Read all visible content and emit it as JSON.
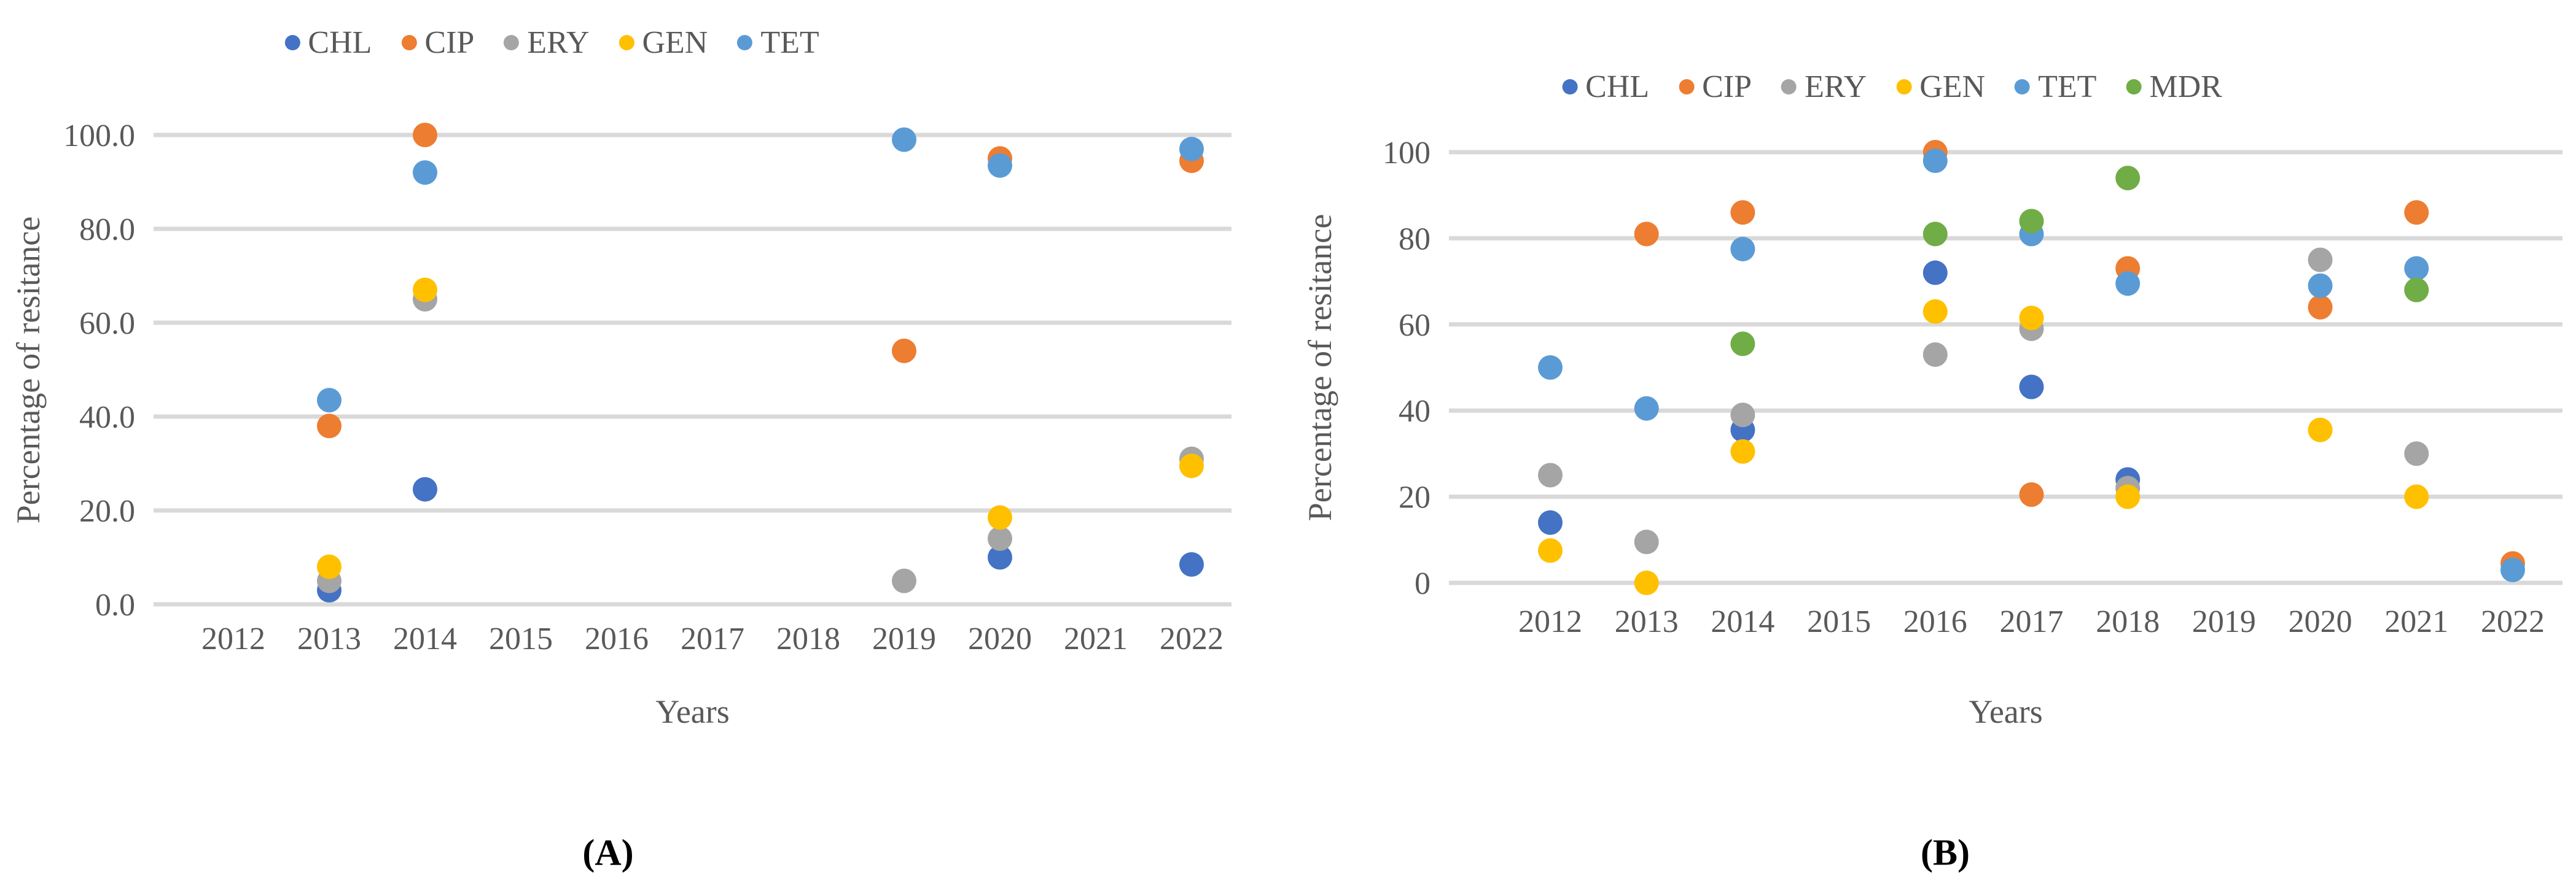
{
  "figure": {
    "background": "#FFFFFF",
    "text_color": "#595959",
    "gridline_color": "#D9D9D9"
  },
  "chart_data": [
    {
      "id": "A",
      "type": "scatter",
      "caption": "(A)",
      "title": "",
      "xlabel": "Years",
      "ylabel": "Percentage of resitance",
      "x_tick_labels": [
        "2012",
        "2013",
        "2014",
        "2015",
        "2016",
        "2017",
        "2018",
        "2019",
        "2020",
        "2021",
        "2022"
      ],
      "y_tick_labels": [
        "0.0",
        "20.0",
        "40.0",
        "60.0",
        "80.0",
        "100.0"
      ],
      "ylim": [
        0,
        100
      ],
      "grid": true,
      "legend_position": "top",
      "series": [
        {
          "name": "CHL",
          "color": "#4472C4",
          "points": [
            [
              2013,
              3
            ],
            [
              2014,
              24.5
            ],
            [
              2020,
              10
            ],
            [
              2022,
              8.5
            ]
          ]
        },
        {
          "name": "CIP",
          "color": "#ED7D31",
          "points": [
            [
              2013,
              38
            ],
            [
              2014,
              100
            ],
            [
              2019,
              54
            ],
            [
              2020,
              95
            ],
            [
              2022,
              94.5
            ]
          ]
        },
        {
          "name": "ERY",
          "color": "#A5A5A5",
          "points": [
            [
              2013,
              5
            ],
            [
              2014,
              65
            ],
            [
              2019,
              5
            ],
            [
              2020,
              14
            ],
            [
              2022,
              31
            ]
          ]
        },
        {
          "name": "GEN",
          "color": "#FFC000",
          "points": [
            [
              2013,
              8
            ],
            [
              2014,
              67
            ],
            [
              2020,
              18.5
            ],
            [
              2022,
              29.5
            ]
          ]
        },
        {
          "name": "TET",
          "color": "#5B9BD5",
          "points": [
            [
              2013,
              43.5
            ],
            [
              2014,
              92
            ],
            [
              2019,
              99
            ],
            [
              2020,
              93.5
            ],
            [
              2022,
              97
            ]
          ]
        }
      ]
    },
    {
      "id": "B",
      "type": "scatter",
      "caption": "(B)",
      "title": "",
      "xlabel": "Years",
      "ylabel": "Percentage of resitance",
      "x_tick_labels": [
        "2012",
        "2013",
        "2014",
        "2015",
        "2016",
        "2017",
        "2018",
        "2019",
        "2020",
        "2021",
        "2022"
      ],
      "y_tick_labels": [
        "0",
        "20",
        "40",
        "60",
        "80",
        "100"
      ],
      "ylim": [
        0,
        100
      ],
      "grid": true,
      "legend_position": "top",
      "series": [
        {
          "name": "CHL",
          "color": "#4472C4",
          "points": [
            [
              2012,
              14
            ],
            [
              2014,
              35.5
            ],
            [
              2016,
              72
            ],
            [
              2017,
              45.5
            ],
            [
              2018,
              24
            ]
          ]
        },
        {
          "name": "CIP",
          "color": "#ED7D31",
          "points": [
            [
              2013,
              81
            ],
            [
              2014,
              86
            ],
            [
              2016,
              100
            ],
            [
              2017,
              20.5
            ],
            [
              2018,
              73
            ],
            [
              2020,
              64
            ],
            [
              2021,
              86
            ],
            [
              2022,
              4.5
            ]
          ]
        },
        {
          "name": "ERY",
          "color": "#A5A5A5",
          "points": [
            [
              2012,
              25
            ],
            [
              2013,
              9.5
            ],
            [
              2014,
              39
            ],
            [
              2016,
              53
            ],
            [
              2017,
              59
            ],
            [
              2018,
              22
            ],
            [
              2020,
              75
            ],
            [
              2021,
              30
            ]
          ]
        },
        {
          "name": "GEN",
          "color": "#FFC000",
          "points": [
            [
              2012,
              7.5
            ],
            [
              2013,
              0
            ],
            [
              2014,
              30.5
            ],
            [
              2016,
              63
            ],
            [
              2017,
              61.5
            ],
            [
              2018,
              20
            ],
            [
              2020,
              35.5
            ],
            [
              2021,
              20
            ]
          ]
        },
        {
          "name": "TET",
          "color": "#5B9BD5",
          "points": [
            [
              2012,
              50
            ],
            [
              2013,
              40.5
            ],
            [
              2014,
              77.5
            ],
            [
              2016,
              98
            ],
            [
              2017,
              81
            ],
            [
              2018,
              69.5
            ],
            [
              2020,
              69
            ],
            [
              2021,
              73
            ],
            [
              2022,
              3
            ]
          ]
        },
        {
          "name": "MDR",
          "color": "#70AD47",
          "points": [
            [
              2014,
              55.5
            ],
            [
              2016,
              81
            ],
            [
              2017,
              84
            ],
            [
              2018,
              94
            ],
            [
              2021,
              68
            ]
          ]
        }
      ]
    }
  ]
}
